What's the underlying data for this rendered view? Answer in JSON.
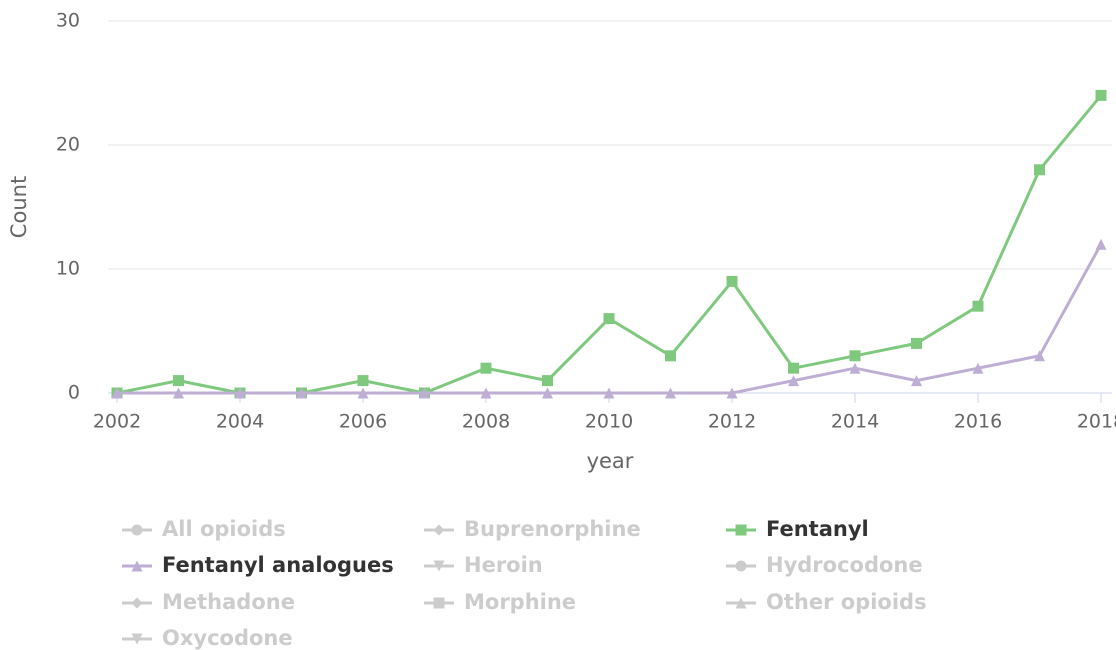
{
  "chart_data": {
    "type": "line",
    "x_label": "year",
    "y_label": "Count",
    "x": [
      2002,
      2003,
      2004,
      2005,
      2006,
      2007,
      2008,
      2009,
      2010,
      2011,
      2012,
      2013,
      2014,
      2015,
      2016,
      2017,
      2018
    ],
    "xlim": [
      2002,
      2018
    ],
    "xticks": [
      2002,
      2004,
      2006,
      2008,
      2010,
      2012,
      2014,
      2016,
      2018
    ],
    "ylim": [
      0,
      30
    ],
    "yticks": [
      0,
      10,
      20,
      30
    ],
    "grid": true,
    "legend": "bottom",
    "series": [
      {
        "name": "All opioids",
        "symbol": "circle",
        "visible": false,
        "color": "#cccccc"
      },
      {
        "name": "Buprenorphine",
        "symbol": "diamond",
        "visible": false,
        "color": "#cccccc"
      },
      {
        "name": "Fentanyl",
        "symbol": "square",
        "visible": true,
        "color": "#7fc97f",
        "values": [
          0,
          1,
          0,
          0,
          1,
          0,
          2,
          1,
          6,
          3,
          9,
          2,
          3,
          4,
          7,
          18,
          24
        ]
      },
      {
        "name": "Fentanyl analogues",
        "symbol": "triangle",
        "visible": true,
        "color": "#beaed4",
        "values": [
          0,
          0,
          0,
          0,
          0,
          0,
          0,
          0,
          0,
          0,
          0,
          1,
          2,
          1,
          2,
          3,
          12
        ]
      },
      {
        "name": "Heroin",
        "symbol": "triangle-down",
        "visible": false,
        "color": "#cccccc"
      },
      {
        "name": "Hydrocodone",
        "symbol": "circle",
        "visible": false,
        "color": "#cccccc"
      },
      {
        "name": "Methadone",
        "symbol": "diamond",
        "visible": false,
        "color": "#cccccc"
      },
      {
        "name": "Morphine",
        "symbol": "square",
        "visible": false,
        "color": "#cccccc"
      },
      {
        "name": "Other opioids",
        "symbol": "triangle",
        "visible": false,
        "color": "#cccccc"
      },
      {
        "name": "Oxycodone",
        "symbol": "triangle-down",
        "visible": false,
        "color": "#cccccc"
      }
    ]
  }
}
